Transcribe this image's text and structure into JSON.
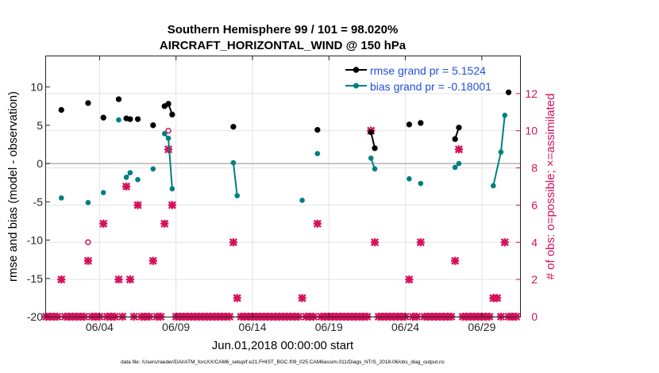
{
  "chart_data": {
    "type": "line",
    "title_line1": "Southern Hemisphere 99 / 101 = 98.020%",
    "title_line2": "AIRCRAFT_HORIZONTAL_WIND @ 150 hPa",
    "xlabel": "Jun.01,2018 00:00:00 start",
    "ylabel_left": "rmse and bias (model - observation)",
    "ylabel_right": "# of obs: o=possible; ×=assimilated",
    "footnote": "data file: /Users/raeder/DAI/ATM_forcXX/CAM6_setup/f.e21.FHIST_BGC.f09_025.CAM6assim.011/Diags_NTrS_2018-06/obs_diag_output.nc",
    "xlim": [
      0,
      31
    ],
    "ylim_left": [
      -20,
      14
    ],
    "ylim_right": [
      0,
      14
    ],
    "x_ticks": [
      3.5,
      8.5,
      13.5,
      18.5,
      23.5,
      28.5
    ],
    "x_tick_labels": [
      "06/04",
      "06/09",
      "06/14",
      "06/19",
      "06/24",
      "06/29"
    ],
    "y_ticks_left": [
      -20,
      -15,
      -10,
      -5,
      0,
      5,
      10
    ],
    "y_tick_labels_left": [
      "-20",
      "-15",
      "-10",
      "-5",
      "0",
      "5",
      "10"
    ],
    "y_ticks_right": [
      0,
      2,
      4,
      6,
      8,
      10,
      12
    ],
    "y_tick_labels_right": [
      "0",
      "2",
      "4",
      "6",
      "8",
      "10",
      "12"
    ],
    "grid": true,
    "colors": {
      "rmse": "#000000",
      "bias": "#007f7f",
      "obs": "#d6105a",
      "legend_text": "#1f4fe0",
      "zero_line": "#b8b8b8",
      "grid": "#e3e3e3"
    },
    "series": [
      {
        "name": "rmse grand pr = 5.1524",
        "axis": "left",
        "segments": [
          [
            [
              1.0,
              7.0
            ]
          ],
          [
            [
              2.75,
              7.9
            ]
          ],
          [
            [
              3.75,
              6.0
            ]
          ],
          [
            [
              4.75,
              8.4
            ]
          ],
          [
            [
              5.25,
              5.9
            ],
            [
              5.5,
              5.8
            ]
          ],
          [
            [
              6.0,
              5.8
            ]
          ],
          [
            [
              7.0,
              5.0
            ]
          ],
          [
            [
              7.75,
              7.5
            ],
            [
              8.0,
              7.8
            ],
            [
              8.25,
              6.4
            ]
          ],
          [
            [
              12.25,
              4.8
            ]
          ],
          [
            [
              17.75,
              4.4
            ]
          ],
          [
            [
              21.25,
              4.1
            ],
            [
              21.5,
              2.0
            ]
          ],
          [
            [
              23.75,
              5.1
            ]
          ],
          [
            [
              24.5,
              5.3
            ]
          ],
          [
            [
              26.75,
              3.2
            ],
            [
              27.0,
              4.7
            ]
          ],
          [
            [
              30.25,
              9.3
            ]
          ]
        ]
      },
      {
        "name": "bias grand pr = -0.18001",
        "axis": "left",
        "segments": [
          [
            [
              1.0,
              -4.5
            ]
          ],
          [
            [
              2.75,
              -5.1
            ]
          ],
          [
            [
              3.75,
              -3.8
            ]
          ],
          [
            [
              4.75,
              5.7
            ]
          ],
          [
            [
              5.25,
              -1.8
            ],
            [
              5.5,
              -1.2
            ]
          ],
          [
            [
              6.0,
              -2.1
            ]
          ],
          [
            [
              7.0,
              -0.7
            ]
          ],
          [
            [
              7.75,
              3.9
            ],
            [
              8.0,
              3.3
            ],
            [
              8.25,
              -3.3
            ]
          ],
          [
            [
              12.25,
              0.1
            ],
            [
              12.5,
              -4.2
            ]
          ],
          [
            [
              16.75,
              -4.8
            ]
          ],
          [
            [
              17.75,
              1.3
            ]
          ],
          [
            [
              21.25,
              0.7
            ],
            [
              21.5,
              -0.7
            ]
          ],
          [
            [
              23.75,
              -2.0
            ]
          ],
          [
            [
              24.5,
              -2.6
            ]
          ],
          [
            [
              26.75,
              -0.5
            ],
            [
              27.0,
              0.0
            ]
          ],
          [
            [
              29.25,
              -2.9
            ],
            [
              29.75,
              1.5
            ],
            [
              30.0,
              6.3
            ]
          ]
        ]
      },
      {
        "name": "assimilated",
        "axis": "right",
        "marker": "x",
        "points": [
          [
            0.0,
            0
          ],
          [
            0.25,
            0
          ],
          [
            0.5,
            0
          ],
          [
            0.75,
            0
          ],
          [
            1.0,
            2
          ],
          [
            1.25,
            0
          ],
          [
            1.5,
            0
          ],
          [
            1.75,
            0
          ],
          [
            2.0,
            0
          ],
          [
            2.25,
            0
          ],
          [
            2.5,
            0
          ],
          [
            2.75,
            3
          ],
          [
            3.0,
            0
          ],
          [
            3.25,
            0
          ],
          [
            3.5,
            0
          ],
          [
            3.75,
            5
          ],
          [
            4.0,
            0
          ],
          [
            4.25,
            0
          ],
          [
            4.5,
            0
          ],
          [
            4.75,
            2
          ],
          [
            5.0,
            0
          ],
          [
            5.25,
            7
          ],
          [
            5.5,
            2
          ],
          [
            5.75,
            0
          ],
          [
            6.0,
            6
          ],
          [
            6.25,
            0
          ],
          [
            6.5,
            0
          ],
          [
            6.75,
            0
          ],
          [
            7.0,
            3
          ],
          [
            7.25,
            0
          ],
          [
            7.5,
            0
          ],
          [
            7.75,
            5
          ],
          [
            8.0,
            9
          ],
          [
            8.25,
            6
          ],
          [
            8.5,
            0
          ],
          [
            8.75,
            0
          ],
          [
            9.0,
            0
          ],
          [
            9.25,
            0
          ],
          [
            9.5,
            0
          ],
          [
            9.75,
            0
          ],
          [
            10.0,
            0
          ],
          [
            10.25,
            0
          ],
          [
            10.5,
            0
          ],
          [
            10.75,
            0
          ],
          [
            11.0,
            0
          ],
          [
            11.25,
            0
          ],
          [
            11.5,
            0
          ],
          [
            11.75,
            0
          ],
          [
            12.0,
            0
          ],
          [
            12.25,
            4
          ],
          [
            12.5,
            1
          ],
          [
            12.75,
            0
          ],
          [
            13.0,
            0
          ],
          [
            13.25,
            0
          ],
          [
            13.5,
            0
          ],
          [
            13.75,
            0
          ],
          [
            14.0,
            0
          ],
          [
            14.25,
            0
          ],
          [
            14.5,
            0
          ],
          [
            14.75,
            0
          ],
          [
            15.0,
            0
          ],
          [
            15.25,
            0
          ],
          [
            15.5,
            0
          ],
          [
            15.75,
            0
          ],
          [
            16.0,
            0
          ],
          [
            16.25,
            0
          ],
          [
            16.5,
            0
          ],
          [
            16.75,
            1
          ],
          [
            17.0,
            0
          ],
          [
            17.25,
            0
          ],
          [
            17.5,
            0
          ],
          [
            17.75,
            5
          ],
          [
            18.0,
            0
          ],
          [
            18.25,
            0
          ],
          [
            18.5,
            0
          ],
          [
            18.75,
            0
          ],
          [
            19.0,
            0
          ],
          [
            19.25,
            0
          ],
          [
            19.5,
            0
          ],
          [
            19.75,
            0
          ],
          [
            20.0,
            0
          ],
          [
            20.25,
            0
          ],
          [
            20.5,
            0
          ],
          [
            20.75,
            0
          ],
          [
            21.0,
            0
          ],
          [
            21.25,
            10
          ],
          [
            21.5,
            4
          ],
          [
            21.75,
            0
          ],
          [
            22.0,
            0
          ],
          [
            22.25,
            0
          ],
          [
            22.5,
            0
          ],
          [
            22.75,
            0
          ],
          [
            23.0,
            0
          ],
          [
            23.25,
            0
          ],
          [
            23.5,
            0
          ],
          [
            23.75,
            2
          ],
          [
            24.0,
            0
          ],
          [
            24.25,
            0
          ],
          [
            24.5,
            4
          ],
          [
            24.75,
            0
          ],
          [
            25.0,
            0
          ],
          [
            25.25,
            0
          ],
          [
            25.5,
            0
          ],
          [
            25.75,
            0
          ],
          [
            26.0,
            0
          ],
          [
            26.25,
            0
          ],
          [
            26.5,
            0
          ],
          [
            26.75,
            3
          ],
          [
            27.0,
            9
          ],
          [
            27.25,
            0
          ],
          [
            27.5,
            0
          ],
          [
            27.75,
            0
          ],
          [
            28.0,
            0
          ],
          [
            28.25,
            0
          ],
          [
            28.5,
            0
          ],
          [
            28.75,
            0
          ],
          [
            29.0,
            0
          ],
          [
            29.25,
            1
          ],
          [
            29.5,
            1
          ],
          [
            29.75,
            0
          ],
          [
            30.0,
            4
          ],
          [
            30.25,
            0
          ],
          [
            30.5,
            0
          ],
          [
            30.75,
            0
          ]
        ]
      },
      {
        "name": "possible",
        "axis": "right",
        "marker": "o",
        "points": [
          [
            2.75,
            4
          ],
          [
            8.0,
            10
          ],
          [
            21.25,
            10
          ]
        ]
      }
    ],
    "legend_location": "top-right"
  }
}
